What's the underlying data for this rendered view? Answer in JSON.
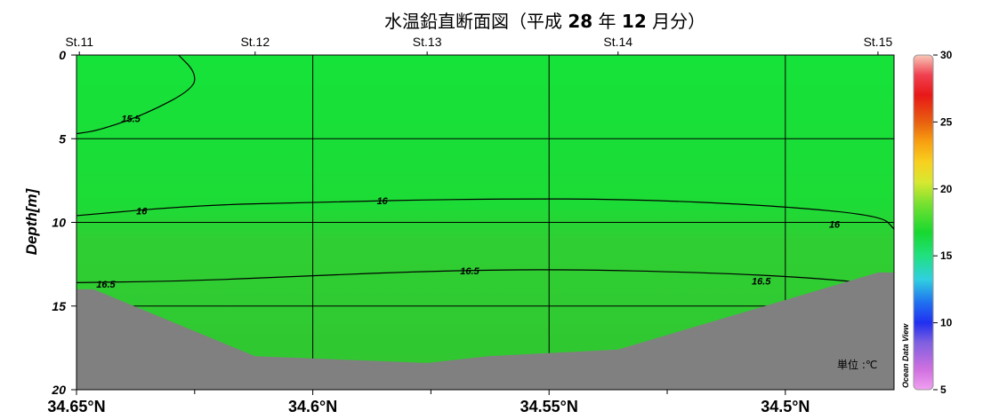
{
  "chart_data": {
    "type": "section-contour",
    "title": "水温鉛直断面図（平成 28 年 12 月分）",
    "title_parts": {
      "pre": "水温鉛直断面図（平成 ",
      "year": "28",
      "mid1": " 年 ",
      "month": "12",
      "post": " 月分）"
    },
    "ylabel": "Depth[m]",
    "ylim": [
      20,
      0
    ],
    "y_ticks": [
      "0",
      "5",
      "10",
      "15",
      "20"
    ],
    "y_tick_values": [
      0,
      5,
      10,
      15,
      20
    ],
    "xlim": [
      34.65,
      34.477
    ],
    "x_ticks": [
      "34.65°N",
      "34.6°N",
      "34.55°N",
      "34.5°N"
    ],
    "x_tick_values": [
      34.65,
      34.6,
      34.55,
      34.5
    ],
    "stations": [
      {
        "name": "St.11",
        "lat": 34.6494
      },
      {
        "name": "St.12",
        "lat": 34.6122
      },
      {
        "name": "St.13",
        "lat": 34.5758
      },
      {
        "name": "St.14",
        "lat": 34.5354
      },
      {
        "name": "St.15",
        "lat": 34.4804
      }
    ],
    "seafloor": [
      {
        "lat": 34.65,
        "depth": 14.0
      },
      {
        "lat": 34.6464,
        "depth": 14.0
      },
      {
        "lat": 34.6122,
        "depth": 18.0
      },
      {
        "lat": 34.5758,
        "depth": 18.4
      },
      {
        "lat": 34.5628,
        "depth": 18.0
      },
      {
        "lat": 34.5354,
        "depth": 17.6
      },
      {
        "lat": 34.4804,
        "depth": 13.0
      },
      {
        "lat": 34.477,
        "depth": 13.0
      }
    ],
    "contours": [
      {
        "level": "15.5",
        "points": [
          [
            34.6284,
            0.0
          ],
          [
            34.6249,
            1.0
          ],
          [
            34.6251,
            2.0
          ],
          [
            34.6351,
            3.5
          ],
          [
            34.6452,
            4.5
          ],
          [
            34.65,
            4.7
          ]
        ],
        "labels": [
          {
            "lat": 34.6385,
            "depth": 3.8
          }
        ]
      },
      {
        "level": "16",
        "points": [
          [
            34.65,
            9.6
          ],
          [
            34.6257,
            9.0
          ],
          [
            34.6013,
            8.8
          ],
          [
            34.5664,
            8.6
          ],
          [
            34.5337,
            8.6
          ],
          [
            34.5021,
            9.0
          ],
          [
            34.4796,
            9.6
          ],
          [
            34.477,
            10.4
          ]
        ],
        "labels": [
          {
            "lat": 34.6362,
            "depth": 9.3
          },
          {
            "lat": 34.5853,
            "depth": 8.7
          },
          {
            "lat": 34.4896,
            "depth": 10.1
          }
        ]
      },
      {
        "level": "16.5",
        "points": [
          [
            34.65,
            13.6
          ],
          [
            34.6257,
            13.5
          ],
          [
            34.6013,
            13.2
          ],
          [
            34.5745,
            12.9
          ],
          [
            34.5476,
            12.8
          ],
          [
            34.5163,
            13.0
          ],
          [
            34.4951,
            13.3
          ],
          [
            34.4796,
            13.7
          ]
        ],
        "labels": [
          {
            "lat": 34.6438,
            "depth": 13.7
          },
          {
            "lat": 34.5668,
            "depth": 12.9
          },
          {
            "lat": 34.5051,
            "depth": 13.5
          }
        ]
      }
    ],
    "colorbar": {
      "range": [
        5,
        30
      ],
      "ticks": [
        "30",
        "25",
        "20",
        "15",
        "10",
        "5"
      ],
      "tick_values": [
        30,
        25,
        20,
        15,
        10,
        5
      ],
      "label": "Ocean Data View"
    },
    "unit_note": "単位 :℃",
    "grid": true,
    "colors": {
      "water_upper": "#17e03a",
      "water_lower": "#30c530",
      "seafloor": "#808080"
    }
  }
}
